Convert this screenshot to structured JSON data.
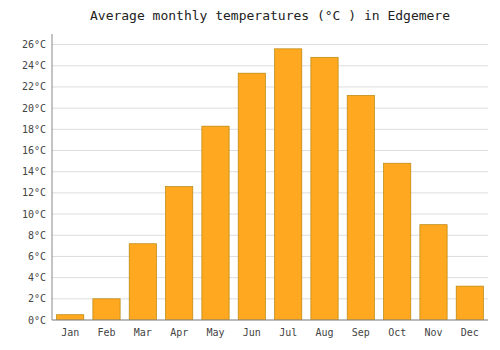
{
  "chart_data": {
    "type": "bar",
    "title": "Average monthly temperatures (°C ) in Edgemere",
    "categories": [
      "Jan",
      "Feb",
      "Mar",
      "Apr",
      "May",
      "Jun",
      "Jul",
      "Aug",
      "Sep",
      "Oct",
      "Nov",
      "Dec"
    ],
    "values": [
      0.5,
      2.0,
      7.2,
      12.6,
      18.3,
      23.3,
      25.6,
      24.8,
      21.2,
      14.8,
      9.0,
      3.2
    ],
    "color": "#FFA820",
    "ylim": [
      0,
      27
    ],
    "yticks": [
      {
        "value": 0,
        "label": "0°C"
      },
      {
        "value": 2,
        "label": "2°C"
      },
      {
        "value": 4,
        "label": "4°C"
      },
      {
        "value": 6,
        "label": "6°C"
      },
      {
        "value": 8,
        "label": "8°C"
      },
      {
        "value": 10,
        "label": "10°C"
      },
      {
        "value": 12,
        "label": "12°C"
      },
      {
        "value": 14,
        "label": "14°C"
      },
      {
        "value": 16,
        "label": "16°C"
      },
      {
        "value": 18,
        "label": "18°C"
      },
      {
        "value": 20,
        "label": "20°C"
      },
      {
        "value": 22,
        "label": "22°C"
      },
      {
        "value": 24,
        "label": "24°C"
      },
      {
        "value": 26,
        "label": "26°C"
      }
    ],
    "grid": true
  }
}
